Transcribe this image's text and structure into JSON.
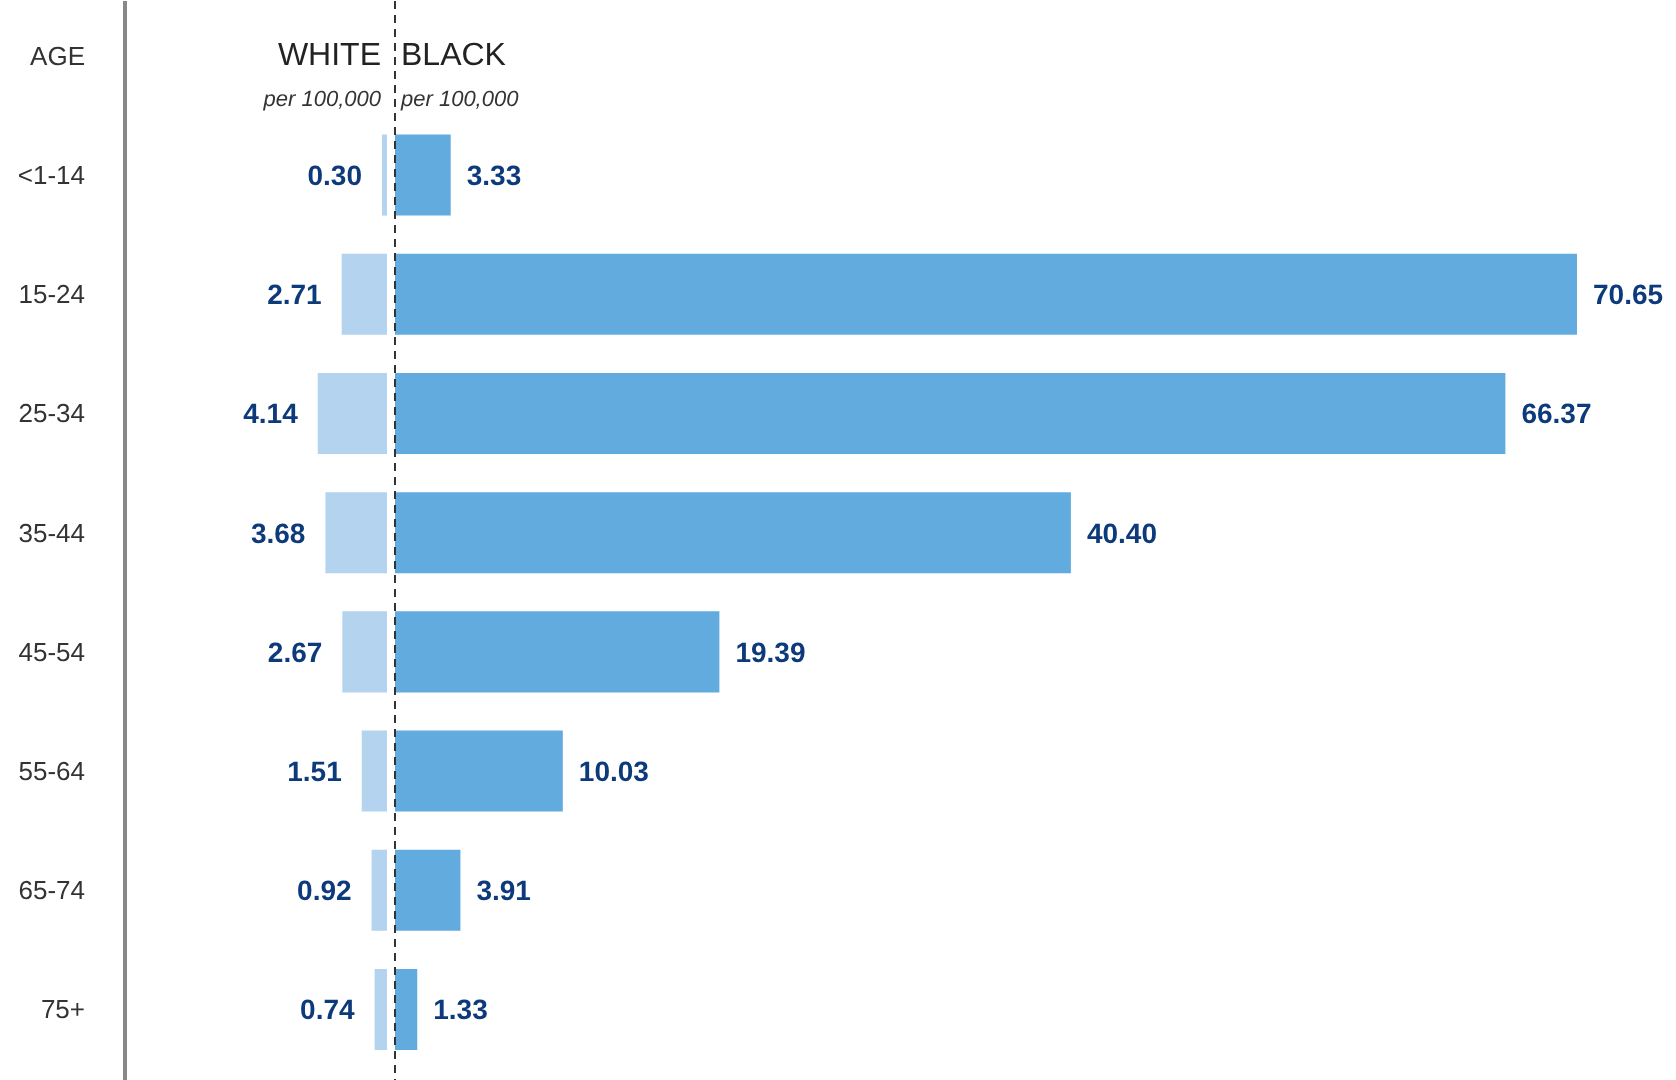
{
  "chart_data": [
    {
      "type": "bar",
      "orientation": "horizontal",
      "ylabel": "AGE",
      "title": "WHITE",
      "subtitle": "per 100,000",
      "categories": [
        "<1-14",
        "15-24",
        "25-34",
        "35-44",
        "45-54",
        "55-64",
        "65-74",
        "75+"
      ],
      "color": "#b3d3ee",
      "values": [
        0.3,
        2.71,
        4.14,
        3.68,
        2.67,
        1.51,
        0.92,
        0.74
      ],
      "value_labels": [
        "0.30",
        "2.71",
        "4.14",
        "3.68",
        "2.67",
        "1.51",
        "0.92",
        "0.74"
      ]
    },
    {
      "type": "bar",
      "orientation": "horizontal",
      "title": "BLACK",
      "subtitle": "per 100,000",
      "categories": [
        null,
        null,
        null,
        null,
        null,
        null,
        null,
        null
      ],
      "color": "#62abdf",
      "values": [
        3.33,
        70.65,
        66.37,
        40.4,
        19.39,
        10.03,
        3.91,
        1.33
      ],
      "value_labels": [
        "3.33",
        "70.65",
        "66.37",
        "40.40",
        "19.39",
        "10.03",
        "3.91",
        "1.33"
      ],
      "ref_lines": [
        {
          "axis": "x",
          "value": 0,
          "color": "#333333",
          "line_style": "dashed"
        }
      ],
      "tick_labels": false
    }
  ]
}
